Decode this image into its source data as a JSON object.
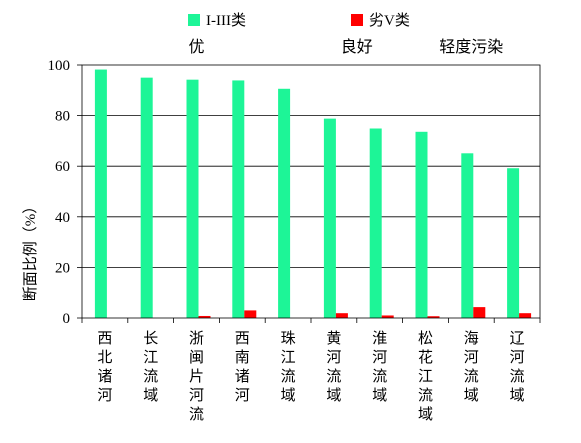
{
  "chart_data": {
    "type": "bar",
    "categories": [
      "西北诸河",
      "长江流域",
      "浙闽片河流",
      "西南诸河",
      "珠江流域",
      "黄河流域",
      "淮河流域",
      "松花江流域",
      "海河流域",
      "辽河流域"
    ],
    "series": [
      {
        "name": "I-III类",
        "color": "#1DF597",
        "values": [
          98.2,
          95.0,
          94.2,
          93.9,
          90.6,
          78.8,
          74.9,
          73.6,
          65.1,
          59.2
        ]
      },
      {
        "name": "劣V类",
        "color": "#FF0000",
        "values": [
          0,
          0,
          0.8,
          3.0,
          0,
          1.9,
          1.0,
          0.7,
          4.3,
          1.9
        ]
      }
    ],
    "xlabel": "",
    "ylabel": "断面比例（%）",
    "ylim": [
      0,
      100
    ],
    "yticks": [
      0,
      20,
      40,
      60,
      80,
      100
    ],
    "grid": true,
    "legend_position": "top",
    "annotations": [
      {
        "text": "优",
        "span": [
          0,
          4
        ]
      },
      {
        "text": "良好",
        "span": [
          5,
          6
        ]
      },
      {
        "text": "轻度污染",
        "span": [
          7,
          9
        ]
      }
    ]
  }
}
